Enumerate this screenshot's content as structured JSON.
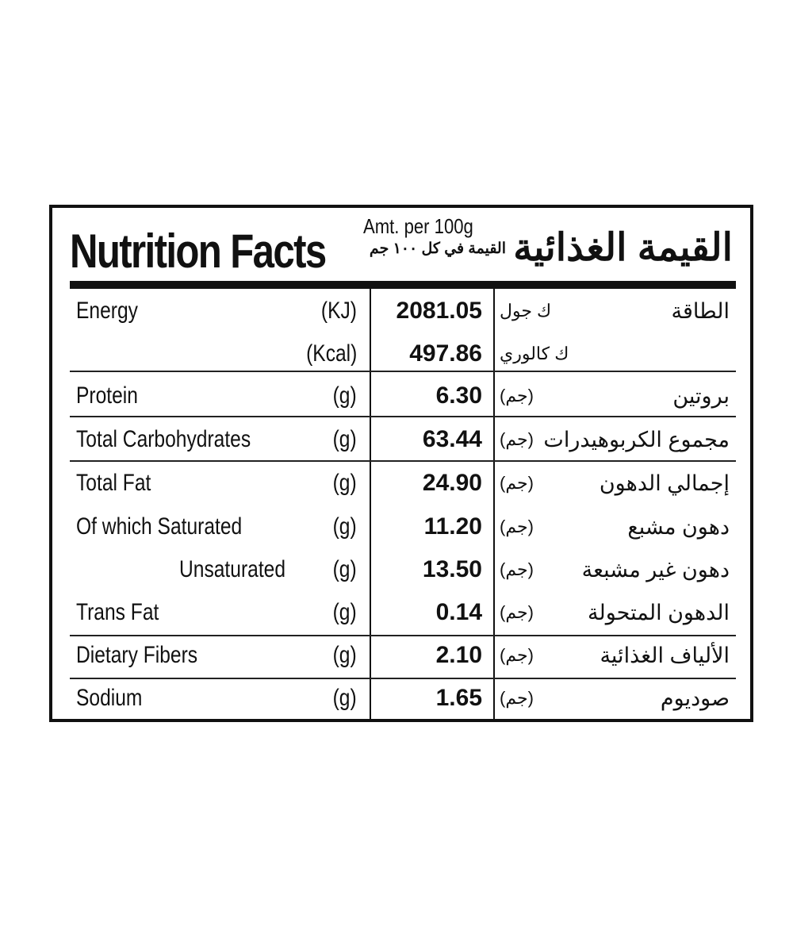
{
  "header": {
    "title": "Nutrition Facts",
    "amount": "Amt. per 100g",
    "amount_ar": "القيمة في كل ١٠٠ جم",
    "title_ar": "القيمة الغذائية"
  },
  "rows": [
    {
      "label": "Energy",
      "unit": "(KJ)",
      "value": "2081.05",
      "unit_ar": "ك جول",
      "label_ar": "الطاقة"
    },
    {
      "label": "",
      "unit": "(Kcal)",
      "value": "497.86",
      "unit_ar": "ك كالوري",
      "label_ar": ""
    },
    {
      "label": "Protein",
      "unit": "(g)",
      "value": "6.30",
      "unit_ar": "(جم)",
      "label_ar": "بروتين"
    },
    {
      "label": "Total Carbohydrates",
      "unit": "(g)",
      "value": "63.44",
      "unit_ar": "(جم)",
      "label_ar": "مجموع الكربوهيدرات"
    },
    {
      "label": "Total Fat",
      "unit": "(g)",
      "value": "24.90",
      "unit_ar": "(جم)",
      "label_ar": "إجمالي الدهون"
    },
    {
      "label": "Of which  Saturated",
      "unit": "(g)",
      "value": "11.20",
      "unit_ar": "(جم)",
      "label_ar": "دهون مشبع"
    },
    {
      "label": "Unsaturated",
      "unit": "(g)",
      "value": "13.50",
      "unit_ar": "(جم)",
      "label_ar": "دهون غير مشبعة"
    },
    {
      "label": "Trans Fat",
      "unit": "(g)",
      "value": "0.14",
      "unit_ar": "(جم)",
      "label_ar": "الدهون المتحولة"
    },
    {
      "label": "Dietary Fibers",
      "unit": "(g)",
      "value": "2.10",
      "unit_ar": "(جم)",
      "label_ar": "الألياف الغذائية"
    },
    {
      "label": "Sodium",
      "unit": "(g)",
      "value": "1.65",
      "unit_ar": "(جم)",
      "label_ar": "صوديوم"
    }
  ]
}
